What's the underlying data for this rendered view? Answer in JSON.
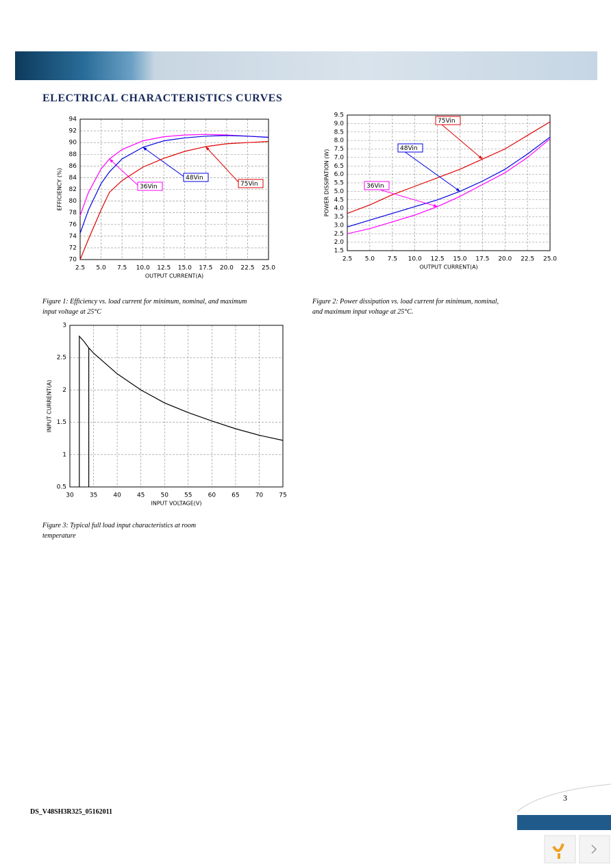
{
  "header": {
    "title": "ELECTRICAL CHARACTERISTICS CURVES"
  },
  "chart_data": [
    {
      "type": "line",
      "x": [
        2.5,
        3.5,
        5,
        6,
        7.5,
        10,
        12.5,
        15,
        17.5,
        20,
        22.5,
        25
      ],
      "series": [
        {
          "name": "36Vin",
          "color": "#ff00ff",
          "values": [
            77.5,
            81.5,
            85.5,
            87.2,
            88.8,
            90.3,
            91.0,
            91.3,
            91.4,
            91.3,
            91.1,
            90.9
          ]
        },
        {
          "name": "48Vin",
          "color": "#0000e0",
          "values": [
            74.5,
            78.5,
            83.0,
            85.0,
            87.2,
            89.2,
            90.3,
            90.8,
            91.1,
            91.2,
            91.1,
            90.9
          ]
        },
        {
          "name": "75Vin",
          "color": "#e00000",
          "values": [
            70.0,
            73.5,
            78.5,
            81.5,
            83.5,
            85.8,
            87.3,
            88.5,
            89.3,
            89.8,
            90.0,
            90.2
          ]
        }
      ],
      "xlim": [
        2.5,
        25
      ],
      "ylim": [
        70,
        94
      ],
      "xticks": [
        2.5,
        {
          "value": 5,
          "label": "5.0"
        },
        7.5,
        {
          "value": 10,
          "label": "10.0"
        },
        12.5,
        {
          "value": 15,
          "label": "15.0"
        },
        17.5,
        {
          "value": 20,
          "label": "20.0"
        },
        22.5,
        {
          "value": 25,
          "label": "25.0"
        }
      ],
      "yticks": [
        70,
        72,
        74,
        76,
        78,
        80,
        82,
        84,
        86,
        88,
        90,
        92,
        94
      ],
      "xlabel": "OUTPUT CURRENT(A)",
      "ylabel": "EFFICIENCY (%)",
      "grid": true,
      "caption": "Figure 1: Efficiency vs. load current for minimum, nominal, and maximum input voltage at 25°C"
    },
    {
      "type": "line",
      "x": [
        2.5,
        5,
        7.5,
        10,
        12.5,
        15,
        17.5,
        20,
        22.5,
        25
      ],
      "series": [
        {
          "name": "75Vin",
          "color": "#e00000",
          "values": [
            3.7,
            4.2,
            4.8,
            5.3,
            5.8,
            6.3,
            6.9,
            7.5,
            8.3,
            9.1
          ]
        },
        {
          "name": "48Vin",
          "color": "#0000e0",
          "values": [
            2.9,
            3.3,
            3.7,
            4.1,
            4.5,
            5.0,
            5.6,
            6.3,
            7.2,
            8.2
          ]
        },
        {
          "name": "36Vin",
          "color": "#ff00ff",
          "values": [
            2.5,
            2.8,
            3.2,
            3.6,
            4.1,
            4.7,
            5.4,
            6.1,
            7.0,
            8.1
          ]
        }
      ],
      "xlim": [
        2.5,
        25
      ],
      "ylim": [
        1.5,
        9.5
      ],
      "xticks": [
        2.5,
        {
          "value": 5,
          "label": "5.0"
        },
        7.5,
        {
          "value": 10,
          "label": "10.0"
        },
        12.5,
        {
          "value": 15,
          "label": "15.0"
        },
        17.5,
        {
          "value": 20,
          "label": "20.0"
        },
        22.5,
        {
          "value": 25,
          "label": "25.0"
        }
      ],
      "yticks": [
        1.5,
        {
          "value": 2,
          "label": "2.0"
        },
        2.5,
        {
          "value": 3,
          "label": "3.0"
        },
        3.5,
        {
          "value": 4,
          "label": "4.0"
        },
        4.5,
        {
          "value": 5,
          "label": "5.0"
        },
        5.5,
        {
          "value": 6,
          "label": "6.0"
        },
        6.5,
        {
          "value": 7,
          "label": "7.0"
        },
        7.5,
        {
          "value": 8,
          "label": "8.0"
        },
        8.5,
        {
          "value": 9,
          "label": "9.0"
        },
        9.5
      ],
      "xlabel": "OUTPUT CURRENT(A)",
      "ylabel": "POWER DISSIPATION (W)",
      "grid": true,
      "caption": "Figure 2: Power dissipation vs. load current for minimum, nominal, and maximum input voltage at 25°C."
    },
    {
      "type": "line",
      "x": [
        32,
        32,
        33,
        34,
        34,
        34,
        35,
        40,
        45,
        50,
        55,
        60,
        65,
        70,
        75
      ],
      "values": [
        0.5,
        2.83,
        2.75,
        2.65,
        0.5,
        2.65,
        2.57,
        2.25,
        2.0,
        1.8,
        1.65,
        1.52,
        1.4,
        1.3,
        1.22
      ],
      "color": "#000000",
      "xlim": [
        30,
        75
      ],
      "ylim": [
        0.5,
        3
      ],
      "xticks": [
        30,
        35,
        40,
        45,
        50,
        55,
        60,
        65,
        70,
        75
      ],
      "yticks": [
        0.5,
        1,
        1.5,
        2,
        2.5,
        3
      ],
      "xlabel": "INPUT VOLTAGE(V)",
      "ylabel": "INPUT CURRENT(A)",
      "grid": true,
      "caption": "Figure 3: Typical full load input characteristics at room temperature"
    }
  ],
  "footer": {
    "doc_id": "DS_V48SH3R325_05162011",
    "page": "3"
  }
}
